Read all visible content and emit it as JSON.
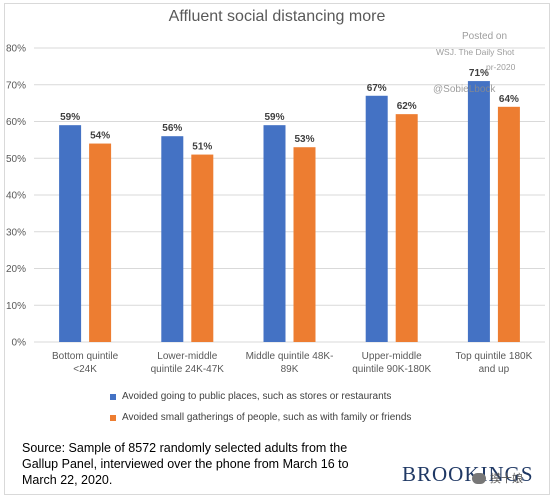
{
  "title": "Affluent social distancing more",
  "chart_data": {
    "type": "bar",
    "categories": [
      [
        "Bottom quintile",
        "<24K"
      ],
      [
        "Lower-middle",
        "quintile 24K-47K"
      ],
      [
        "Middle quintile 48K-",
        "89K"
      ],
      [
        "Upper-middle",
        "quintile 90K-180K"
      ],
      [
        "Top quintile 180K",
        "and up"
      ]
    ],
    "series": [
      {
        "name": "Avoided going to public places, such as stores or restaurants",
        "values": [
          59,
          56,
          59,
          67,
          71
        ],
        "labels": [
          "59%",
          "56%",
          "59%",
          "67%",
          "71%"
        ],
        "color": "#4472c4"
      },
      {
        "name": "Avoided small gatherings of people, such as with family or friends",
        "values": [
          54,
          51,
          53,
          62,
          64
        ],
        "labels": [
          "54%",
          "51%",
          "53%",
          "62%",
          "64%"
        ],
        "color": "#ed7d31"
      }
    ],
    "yticks": [
      "0%",
      "10%",
      "20%",
      "30%",
      "40%",
      "50%",
      "60%",
      "70%",
      "80%"
    ],
    "ylim": [
      0,
      80
    ],
    "grid": true,
    "legend_position": "bottom"
  },
  "source": "Source: Sample of 8572 randomly selected adults from the Gallup Panel, interviewed over the phone from March 16 to March 22, 2020.",
  "brand": "BROOKINGS",
  "watermark": {
    "line1": "Posted on",
    "line2": "WSJ. The Daily Shot",
    "line3": "pr-2020",
    "line4": "@SobieLbock"
  },
  "wechat_label": "摸十娘"
}
